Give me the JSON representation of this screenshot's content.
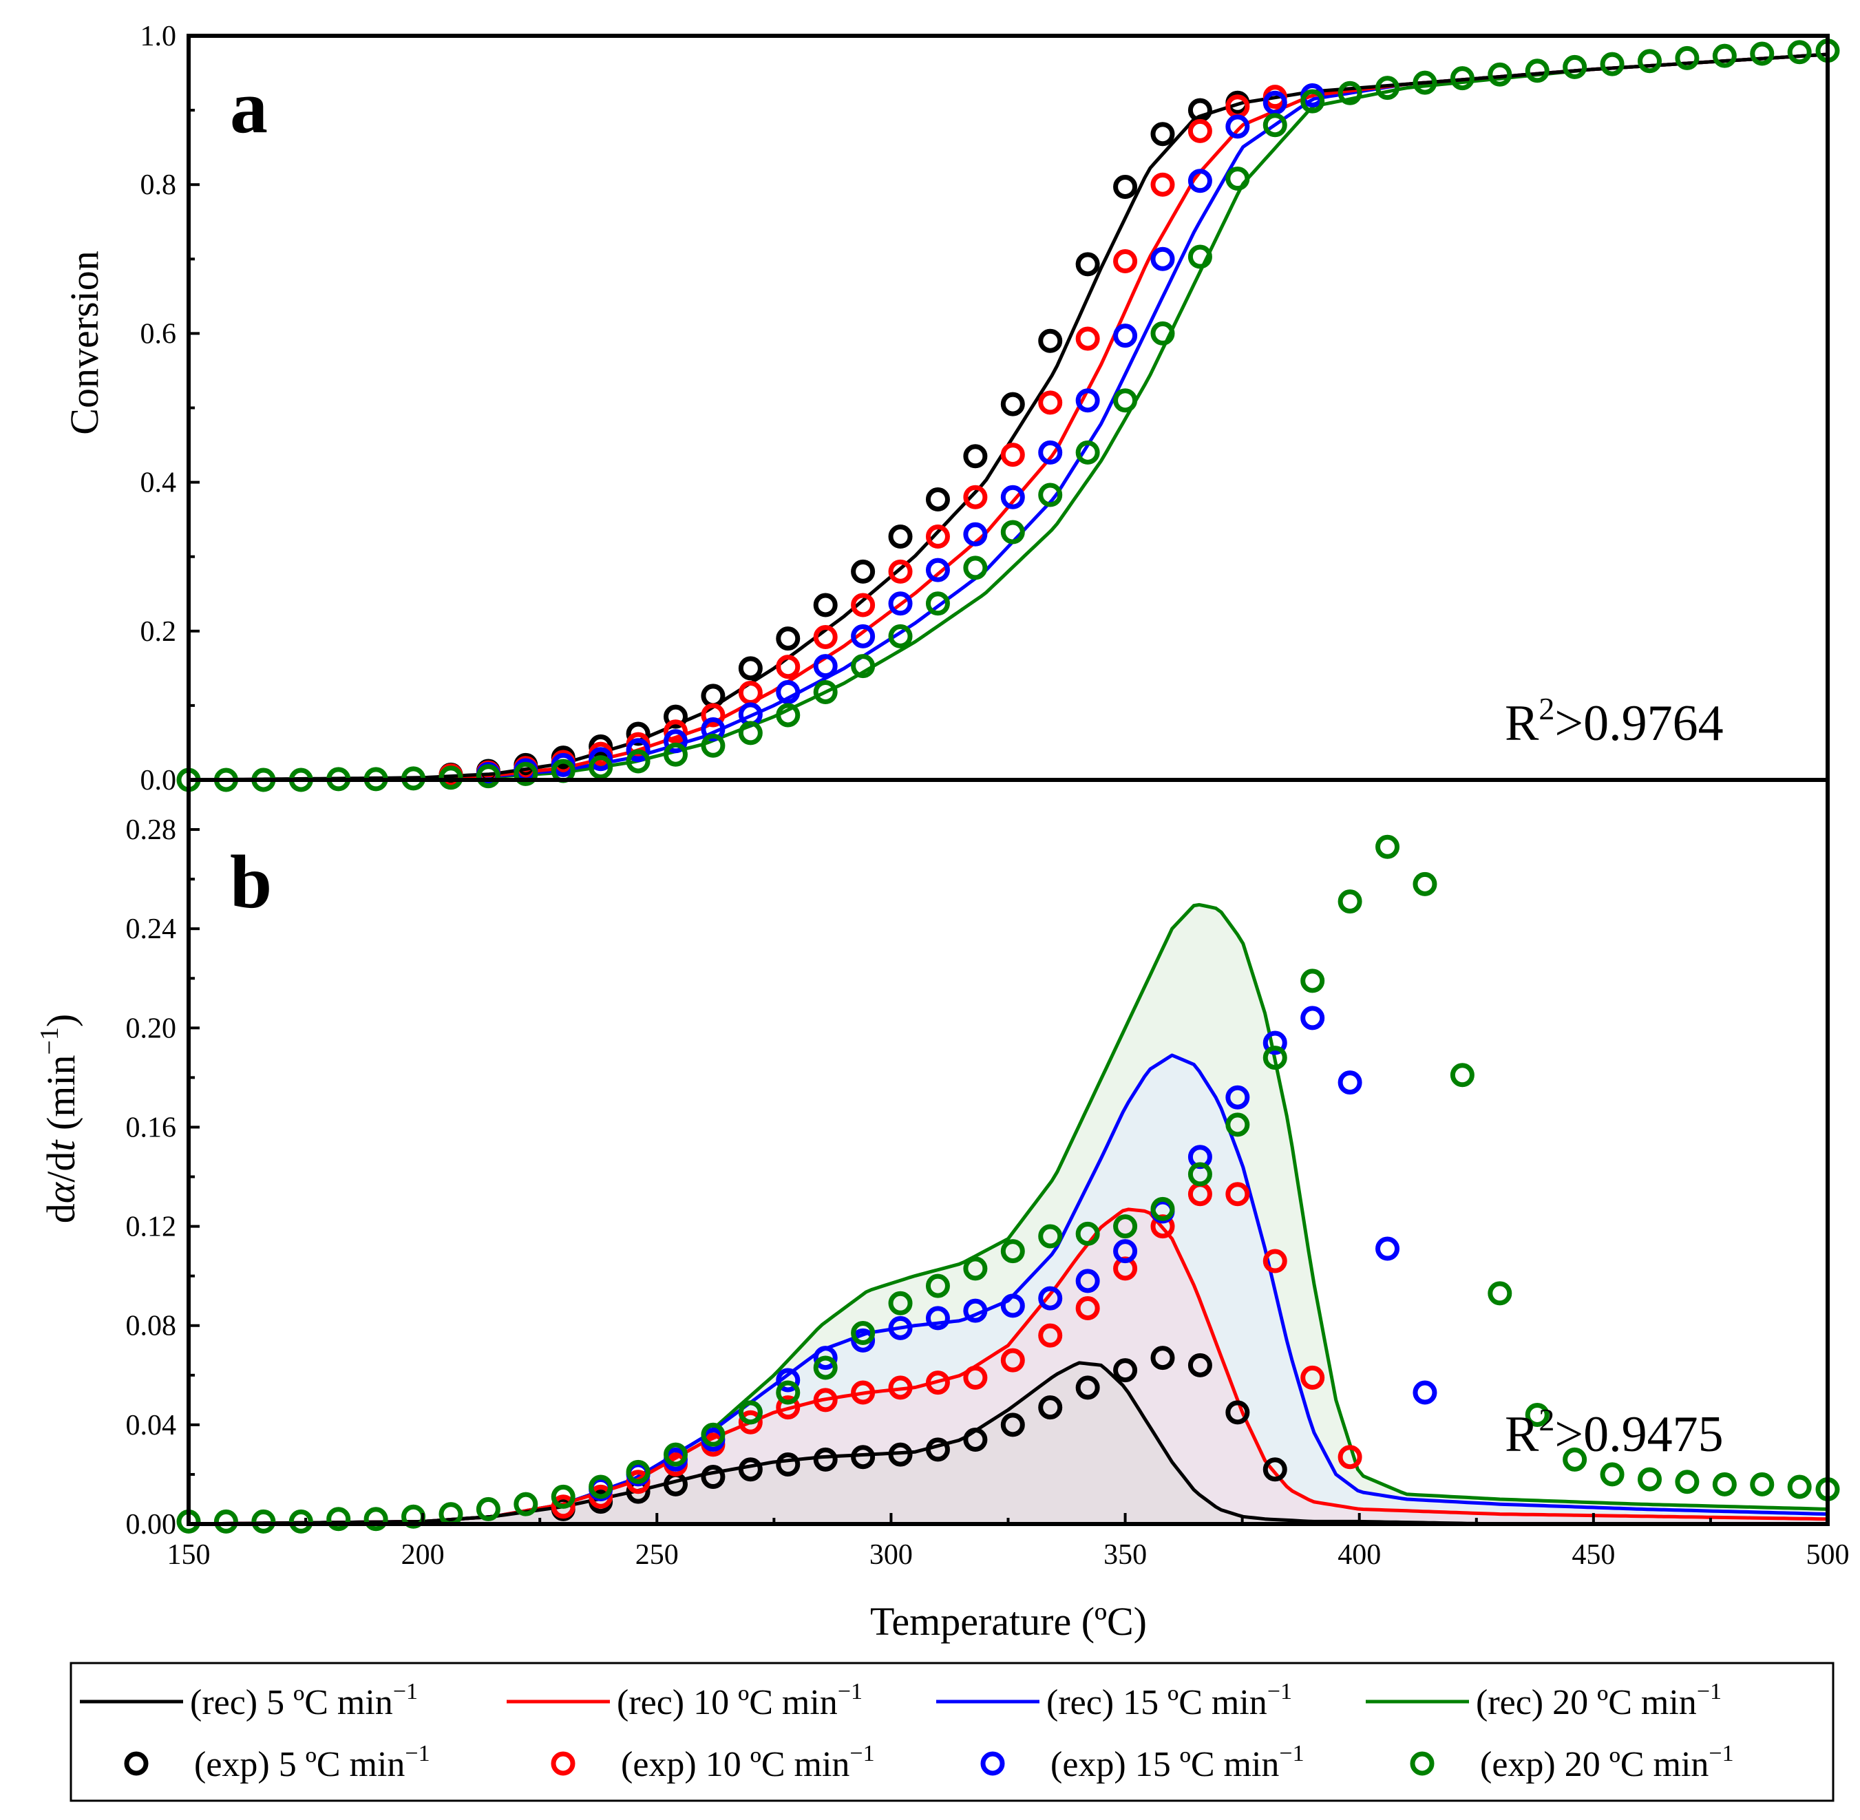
{
  "chart_data": [
    {
      "panel": "a",
      "type": "line",
      "ylabel": "Conversion",
      "annotation": {
        "base": "R",
        "sup": "2",
        "text": ">0.9764"
      },
      "xlim": [
        150,
        500
      ],
      "ylim": [
        0,
        1.0
      ],
      "yticks": [
        0.0,
        0.2,
        0.4,
        0.6,
        0.8,
        1.0
      ],
      "ytick_labels": [
        "0.0",
        "0.2",
        "0.4",
        "0.6",
        "0.8",
        "1.0"
      ],
      "series": [
        {
          "name": "(rec) 5 ºC min⁻¹",
          "kind": "rec",
          "color": "#000000",
          "x": [
            150,
            200,
            215,
            230,
            245,
            260,
            275,
            290,
            305,
            320,
            335,
            345,
            355,
            365,
            375,
            390,
            410,
            450,
            500
          ],
          "y": [
            0.0,
            0.003,
            0.008,
            0.022,
            0.05,
            0.09,
            0.15,
            0.22,
            0.3,
            0.4,
            0.55,
            0.69,
            0.82,
            0.89,
            0.91,
            0.925,
            0.935,
            0.955,
            0.975
          ]
        },
        {
          "name": "(rec) 10 ºC min⁻¹",
          "kind": "rec",
          "color": "#ff0000",
          "x": [
            150,
            200,
            215,
            230,
            245,
            260,
            275,
            290,
            305,
            320,
            335,
            345,
            355,
            365,
            375,
            390,
            410,
            450,
            500
          ],
          "y": [
            0.0,
            0.002,
            0.006,
            0.016,
            0.038,
            0.07,
            0.12,
            0.18,
            0.25,
            0.33,
            0.44,
            0.56,
            0.7,
            0.81,
            0.88,
            0.92,
            0.935,
            0.955,
            0.975
          ]
        },
        {
          "name": "(rec) 15 ºC min⁻¹",
          "kind": "rec",
          "color": "#0000ff",
          "x": [
            150,
            200,
            215,
            230,
            245,
            260,
            275,
            290,
            305,
            320,
            335,
            345,
            355,
            365,
            375,
            390,
            410,
            450,
            500
          ],
          "y": [
            0.0,
            0.002,
            0.005,
            0.013,
            0.03,
            0.058,
            0.1,
            0.15,
            0.21,
            0.28,
            0.38,
            0.48,
            0.61,
            0.74,
            0.85,
            0.915,
            0.935,
            0.955,
            0.975
          ]
        },
        {
          "name": "(rec) 20 ºC min⁻¹",
          "kind": "rec",
          "color": "#008000",
          "x": [
            150,
            200,
            215,
            230,
            245,
            260,
            275,
            290,
            305,
            320,
            335,
            345,
            355,
            365,
            375,
            390,
            410,
            450,
            500
          ],
          "y": [
            0.0,
            0.001,
            0.004,
            0.01,
            0.024,
            0.048,
            0.085,
            0.13,
            0.185,
            0.25,
            0.34,
            0.43,
            0.54,
            0.67,
            0.8,
            0.905,
            0.93,
            0.955,
            0.975
          ]
        },
        {
          "name": "(exp) 5 ºC min⁻¹",
          "kind": "exp",
          "color": "#000000",
          "x": [
            206,
            214,
            222,
            230,
            238,
            246,
            254,
            262,
            270,
            278,
            286,
            294,
            302,
            310,
            318,
            326,
            334,
            342,
            350,
            358,
            366,
            374
          ],
          "y": [
            0.007,
            0.012,
            0.02,
            0.03,
            0.045,
            0.062,
            0.085,
            0.113,
            0.15,
            0.19,
            0.235,
            0.28,
            0.327,
            0.377,
            0.435,
            0.505,
            0.59,
            0.693,
            0.797,
            0.868,
            0.9,
            0.91
          ]
        },
        {
          "name": "(exp) 10 ºC min⁻¹",
          "kind": "exp",
          "color": "#ff0000",
          "x": [
            206,
            214,
            222,
            230,
            238,
            246,
            254,
            262,
            270,
            278,
            286,
            294,
            302,
            310,
            318,
            326,
            334,
            342,
            350,
            358,
            366,
            374,
            382
          ],
          "y": [
            0.006,
            0.01,
            0.016,
            0.024,
            0.035,
            0.048,
            0.065,
            0.087,
            0.117,
            0.152,
            0.192,
            0.235,
            0.28,
            0.327,
            0.38,
            0.437,
            0.507,
            0.593,
            0.697,
            0.8,
            0.872,
            0.905,
            0.918
          ]
        },
        {
          "name": "(exp) 15 ºC min⁻¹",
          "kind": "exp",
          "color": "#0000ff",
          "x": [
            214,
            222,
            230,
            238,
            246,
            254,
            262,
            270,
            278,
            286,
            294,
            302,
            310,
            318,
            326,
            334,
            342,
            350,
            358,
            366,
            374,
            382,
            390
          ],
          "y": [
            0.008,
            0.013,
            0.02,
            0.028,
            0.04,
            0.052,
            0.068,
            0.088,
            0.118,
            0.153,
            0.193,
            0.237,
            0.282,
            0.33,
            0.38,
            0.44,
            0.51,
            0.597,
            0.7,
            0.805,
            0.878,
            0.91,
            0.92
          ]
        },
        {
          "name": "(exp) 20 ºC min⁻¹",
          "kind": "exp",
          "color": "#008000",
          "x": [
            150,
            158,
            166,
            174,
            182,
            190,
            198,
            206,
            214,
            222,
            230,
            238,
            246,
            254,
            262,
            270,
            278,
            286,
            294,
            302,
            310,
            318,
            326,
            334,
            342,
            350,
            358,
            366,
            374,
            382,
            390,
            398,
            406,
            414,
            422,
            430,
            438,
            446,
            454,
            462,
            470,
            478,
            486,
            494,
            500
          ],
          "y": [
            0.0,
            0.0,
            0.0,
            0.0,
            0.001,
            0.001,
            0.002,
            0.003,
            0.005,
            0.008,
            0.012,
            0.017,
            0.025,
            0.034,
            0.046,
            0.063,
            0.087,
            0.118,
            0.153,
            0.193,
            0.237,
            0.285,
            0.333,
            0.383,
            0.44,
            0.51,
            0.6,
            0.703,
            0.808,
            0.88,
            0.912,
            0.923,
            0.93,
            0.937,
            0.943,
            0.948,
            0.953,
            0.958,
            0.962,
            0.966,
            0.97,
            0.973,
            0.976,
            0.978,
            0.98
          ]
        }
      ]
    },
    {
      "panel": "b",
      "type": "line",
      "ylabel": {
        "pre": "d",
        "alpha": "α",
        "mid": "/d",
        "t": "t",
        "unit": " (min",
        "exp": "−1",
        "close": ")"
      },
      "annotation": {
        "base": "R",
        "sup": "2",
        "text": ">0.9475"
      },
      "xlabel": "Temperature (ºC)",
      "xlim": [
        150,
        500
      ],
      "ylim": [
        0,
        0.3
      ],
      "xticks": [
        150,
        200,
        250,
        300,
        350,
        400,
        450,
        500
      ],
      "xtick_labels": [
        "150",
        "200",
        "250",
        "300",
        "350",
        "400",
        "450",
        "500"
      ],
      "yticks": [
        0.0,
        0.04,
        0.08,
        0.12,
        0.16,
        0.2,
        0.24,
        0.28
      ],
      "ytick_labels": [
        "0.00",
        "0.04",
        "0.08",
        "0.12",
        "0.16",
        "0.20",
        "0.24",
        "0.28"
      ],
      "series": [
        {
          "name": "(rec) 20 ºC min⁻¹",
          "kind": "rec",
          "color": "#008000",
          "fill": "#e9f3e7",
          "x": [
            150,
            200,
            215,
            230,
            245,
            260,
            275,
            285,
            295,
            305,
            315,
            325,
            335,
            345,
            355,
            360,
            365,
            370,
            375,
            380,
            385,
            390,
            395,
            400,
            410,
            430,
            460,
            500
          ],
          "y": [
            0.0,
            0.001,
            0.003,
            0.008,
            0.018,
            0.035,
            0.06,
            0.08,
            0.094,
            0.1,
            0.105,
            0.115,
            0.14,
            0.18,
            0.22,
            0.24,
            0.25,
            0.248,
            0.235,
            0.205,
            0.16,
            0.1,
            0.05,
            0.02,
            0.012,
            0.01,
            0.008,
            0.006
          ]
        },
        {
          "name": "(rec) 15 ºC min⁻¹",
          "kind": "rec",
          "color": "#0000ff",
          "fill": "#e6eef7",
          "x": [
            150,
            200,
            215,
            230,
            245,
            260,
            275,
            285,
            295,
            305,
            315,
            325,
            335,
            345,
            350,
            355,
            360,
            365,
            370,
            375,
            380,
            385,
            390,
            395,
            400,
            410,
            430,
            460,
            500
          ],
          "y": [
            0.0,
            0.001,
            0.003,
            0.008,
            0.018,
            0.035,
            0.056,
            0.07,
            0.077,
            0.08,
            0.082,
            0.09,
            0.11,
            0.148,
            0.168,
            0.183,
            0.189,
            0.185,
            0.17,
            0.145,
            0.11,
            0.07,
            0.038,
            0.02,
            0.013,
            0.01,
            0.008,
            0.006,
            0.004
          ]
        },
        {
          "name": "(rec) 10 ºC min⁻¹",
          "kind": "rec",
          "color": "#ff0000",
          "fill": "#eee1ea",
          "x": [
            150,
            200,
            215,
            230,
            245,
            260,
            275,
            285,
            295,
            305,
            315,
            325,
            335,
            340,
            345,
            350,
            355,
            360,
            365,
            370,
            375,
            380,
            385,
            390,
            400,
            430,
            500
          ],
          "y": [
            0.0,
            0.001,
            0.003,
            0.008,
            0.017,
            0.033,
            0.045,
            0.05,
            0.053,
            0.055,
            0.06,
            0.072,
            0.095,
            0.108,
            0.12,
            0.127,
            0.126,
            0.115,
            0.095,
            0.07,
            0.045,
            0.025,
            0.014,
            0.009,
            0.006,
            0.004,
            0.002
          ]
        },
        {
          "name": "(rec) 5 ºC min⁻¹",
          "kind": "rec",
          "color": "#000000",
          "fill": "#e4dde2",
          "x": [
            150,
            200,
            215,
            230,
            245,
            260,
            275,
            285,
            295,
            305,
            315,
            325,
            335,
            340,
            345,
            350,
            355,
            360,
            365,
            370,
            375,
            380,
            390,
            400,
            430,
            500
          ],
          "y": [
            0.0,
            0.001,
            0.003,
            0.007,
            0.013,
            0.02,
            0.025,
            0.027,
            0.028,
            0.029,
            0.034,
            0.046,
            0.06,
            0.065,
            0.064,
            0.055,
            0.04,
            0.025,
            0.013,
            0.006,
            0.003,
            0.002,
            0.001,
            0.001,
            0.0,
            0.0
          ]
        },
        {
          "name": "(exp) 5 ºC min⁻¹",
          "kind": "exp",
          "color": "#000000",
          "x": [
            230,
            238,
            246,
            254,
            262,
            270,
            278,
            286,
            294,
            302,
            310,
            318,
            326,
            334,
            342,
            350,
            358,
            366,
            374,
            382
          ],
          "y": [
            0.006,
            0.009,
            0.013,
            0.016,
            0.019,
            0.022,
            0.024,
            0.026,
            0.027,
            0.028,
            0.03,
            0.034,
            0.04,
            0.047,
            0.055,
            0.062,
            0.067,
            0.064,
            0.045,
            0.022
          ]
        },
        {
          "name": "(exp) 10 ºC min⁻¹",
          "kind": "exp",
          "color": "#ff0000",
          "x": [
            230,
            238,
            246,
            254,
            262,
            270,
            278,
            286,
            294,
            302,
            310,
            318,
            326,
            334,
            342,
            350,
            358,
            366,
            374,
            382,
            390,
            398
          ],
          "y": [
            0.007,
            0.011,
            0.017,
            0.024,
            0.032,
            0.041,
            0.047,
            0.05,
            0.053,
            0.055,
            0.057,
            0.059,
            0.066,
            0.076,
            0.087,
            0.103,
            0.12,
            0.133,
            0.133,
            0.106,
            0.059,
            0.027
          ]
        },
        {
          "name": "(exp) 15 ºC min⁻¹",
          "kind": "exp",
          "color": "#0000ff",
          "x": [
            238,
            246,
            254,
            262,
            270,
            278,
            286,
            294,
            302,
            310,
            318,
            326,
            334,
            342,
            350,
            358,
            366,
            374,
            382,
            390,
            398,
            406,
            414
          ],
          "y": [
            0.014,
            0.02,
            0.026,
            0.034,
            0.045,
            0.058,
            0.067,
            0.074,
            0.079,
            0.083,
            0.086,
            0.088,
            0.091,
            0.098,
            0.11,
            0.126,
            0.148,
            0.172,
            0.194,
            0.204,
            0.178,
            0.111,
            0.053
          ]
        },
        {
          "name": "(exp) 20 ºC min⁻¹",
          "kind": "exp",
          "color": "#008000",
          "x": [
            150,
            158,
            166,
            174,
            182,
            190,
            198,
            206,
            214,
            222,
            230,
            238,
            246,
            254,
            262,
            270,
            278,
            286,
            294,
            302,
            310,
            318,
            326,
            334,
            342,
            350,
            358,
            366,
            374,
            382,
            390,
            398,
            406,
            414,
            422,
            430,
            438,
            446,
            454,
            462,
            470,
            478,
            486,
            494,
            500
          ],
          "y": [
            0.001,
            0.001,
            0.001,
            0.001,
            0.002,
            0.002,
            0.003,
            0.004,
            0.006,
            0.008,
            0.011,
            0.015,
            0.021,
            0.028,
            0.036,
            0.045,
            0.053,
            0.063,
            0.077,
            0.089,
            0.096,
            0.103,
            0.11,
            0.116,
            0.117,
            0.12,
            0.127,
            0.141,
            0.161,
            0.188,
            0.219,
            0.251,
            0.273,
            0.258,
            0.181,
            0.093,
            0.044,
            0.026,
            0.02,
            0.018,
            0.017,
            0.016,
            0.016,
            0.015,
            0.014
          ]
        }
      ]
    }
  ],
  "legend": {
    "rec": [
      {
        "pre": "(rec) 5 ºC min",
        "sup": "−1",
        "color": "#000000"
      },
      {
        "pre": "(rec) 10 ºC min",
        "sup": "−1",
        "color": "#ff0000"
      },
      {
        "pre": "(rec) 15 ºC min",
        "sup": "−1",
        "color": "#0000ff"
      },
      {
        "pre": "(rec) 20 ºC min",
        "sup": "−1",
        "color": "#008000"
      }
    ],
    "exp": [
      {
        "pre": "(exp) 5 ºC min",
        "sup": "−1",
        "color": "#000000"
      },
      {
        "pre": "(exp) 10 ºC min",
        "sup": "−1",
        "color": "#ff0000"
      },
      {
        "pre": "(exp) 15 ºC min",
        "sup": "−1",
        "color": "#0000ff"
      },
      {
        "pre": "(exp) 20 ºC min",
        "sup": "−1",
        "color": "#008000"
      }
    ]
  }
}
